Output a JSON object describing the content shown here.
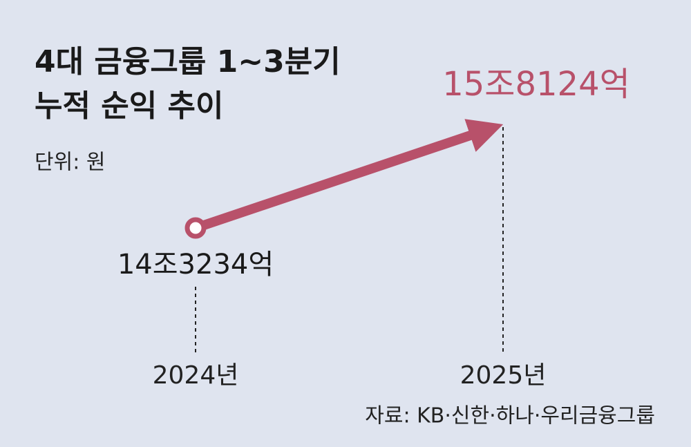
{
  "chart_data": {
    "type": "line",
    "title": [
      "4대 금융그룹 1~3분기",
      "누적 순익 추이"
    ],
    "subtitle": "단위: 원",
    "categories": [
      "2024년",
      "2025년"
    ],
    "values": [
      14323400000000,
      15812400000000
    ],
    "value_labels": [
      "14조3234억",
      "15조8124억"
    ],
    "color": "#b8516a",
    "source": "자료: KB·신한·하나·우리금융그룹"
  }
}
